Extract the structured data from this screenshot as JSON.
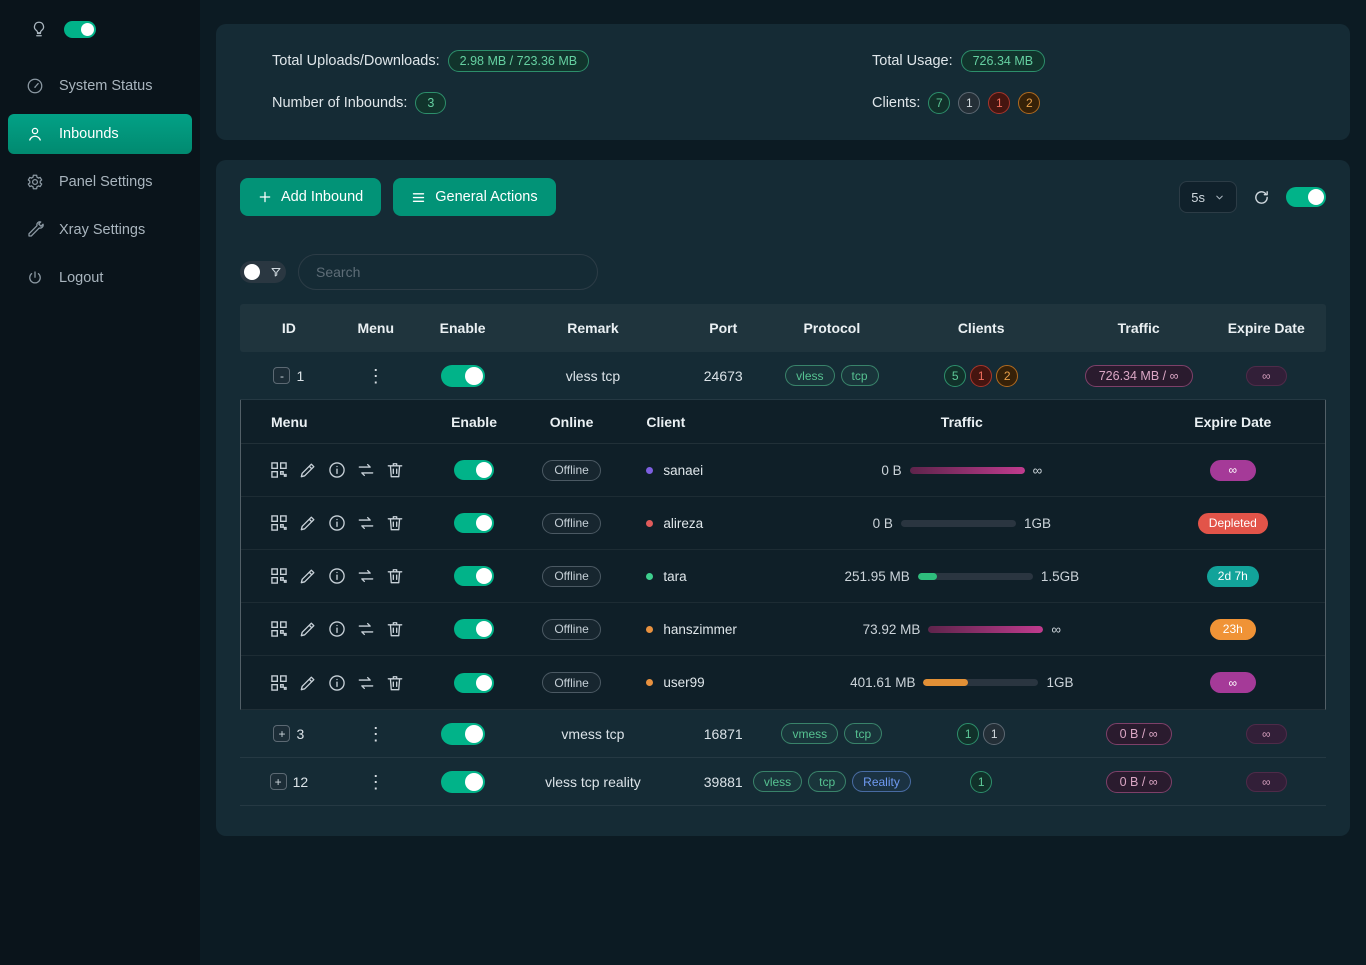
{
  "icons": {
    "kebab": "⋮"
  },
  "sidebar": {
    "theme_toggle_on": true,
    "items": [
      {
        "label": "System Status"
      },
      {
        "label": "Inbounds"
      },
      {
        "label": "Panel Settings"
      },
      {
        "label": "Xray Settings"
      },
      {
        "label": "Logout"
      }
    ]
  },
  "stats": {
    "total_uploads_downloads": {
      "label": "Total Uploads/Downloads:",
      "value": "2.98 MB / 723.36 MB"
    },
    "total_usage": {
      "label": "Total Usage:",
      "value": "726.34 MB"
    },
    "number_of_inbounds": {
      "label": "Number of Inbounds:",
      "value": "3"
    },
    "clients": {
      "label": "Clients:",
      "counts": [
        {
          "value": "7",
          "color": "green"
        },
        {
          "value": "1",
          "color": "gray"
        },
        {
          "value": "1",
          "color": "red"
        },
        {
          "value": "2",
          "color": "orange"
        }
      ]
    }
  },
  "toolbar": {
    "add_inbound_label": "Add Inbound",
    "general_actions_label": "General Actions",
    "refresh_interval": "5s",
    "auto_refresh_on": true
  },
  "search": {
    "placeholder": "Search"
  },
  "inbounds_table": {
    "headers": [
      "ID",
      "Menu",
      "Enable",
      "Remark",
      "Port",
      "Protocol",
      "Clients",
      "Traffic",
      "Expire Date"
    ],
    "rows": [
      {
        "id": "1",
        "expander": "-",
        "enabled": true,
        "remark": "vless tcp",
        "port": "24673",
        "protocols": [
          {
            "label": "vless",
            "color": "green"
          },
          {
            "label": "tcp",
            "color": "green"
          }
        ],
        "clients": [
          {
            "value": "5",
            "color": "green"
          },
          {
            "value": "1",
            "color": "red"
          },
          {
            "value": "2",
            "color": "orange"
          }
        ],
        "traffic": "726.34 MB / ∞",
        "expire": "∞"
      },
      {
        "id": "3",
        "expander": "+",
        "enabled": true,
        "remark": "vmess tcp",
        "port": "16871",
        "protocols": [
          {
            "label": "vmess",
            "color": "green"
          },
          {
            "label": "tcp",
            "color": "green"
          }
        ],
        "clients": [
          {
            "value": "1",
            "color": "green"
          },
          {
            "value": "1",
            "color": "gray"
          }
        ],
        "traffic": "0 B / ∞",
        "expire": "∞"
      },
      {
        "id": "12",
        "expander": "+",
        "enabled": true,
        "remark": "vless tcp reality",
        "port": "39881",
        "protocols": [
          {
            "label": "vless",
            "color": "green"
          },
          {
            "label": "tcp",
            "color": "green"
          },
          {
            "label": "Reality",
            "color": "blue"
          }
        ],
        "clients": [
          {
            "value": "1",
            "color": "green"
          }
        ],
        "traffic": "0 B / ∞",
        "expire": "∞"
      }
    ]
  },
  "clients_table": {
    "headers": [
      "Menu",
      "Enable",
      "Online",
      "Client",
      "Traffic",
      "Expire Date"
    ],
    "rows": [
      {
        "name": "sanaei",
        "dot_color": "purple",
        "enabled": true,
        "online": "Offline",
        "used": "0 B",
        "total": "∞",
        "percent": 100,
        "bar_color": "magenta",
        "expire": {
          "label": "∞",
          "color": "purple"
        }
      },
      {
        "name": "alireza",
        "dot_color": "red",
        "enabled": true,
        "online": "Offline",
        "used": "0 B",
        "total": "1GB",
        "percent": 0,
        "bar_color": "gray",
        "expire": {
          "label": "Depleted",
          "color": "red"
        }
      },
      {
        "name": "tara",
        "dot_color": "green",
        "enabled": true,
        "online": "Offline",
        "used": "251.95 MB",
        "total": "1.5GB",
        "percent": 17,
        "bar_color": "green",
        "expire": {
          "label": "2d 7h",
          "color": "teal"
        }
      },
      {
        "name": "hanszimmer",
        "dot_color": "orange",
        "enabled": true,
        "online": "Offline",
        "used": "73.92 MB",
        "total": "∞",
        "percent": 100,
        "bar_color": "magenta",
        "expire": {
          "label": "23h",
          "color": "orange"
        }
      },
      {
        "name": "user99",
        "dot_color": "orange",
        "enabled": true,
        "online": "Offline",
        "used": "401.61 MB",
        "total": "1GB",
        "percent": 39,
        "bar_color": "orange",
        "expire": {
          "label": "∞",
          "color": "purple"
        }
      }
    ]
  }
}
